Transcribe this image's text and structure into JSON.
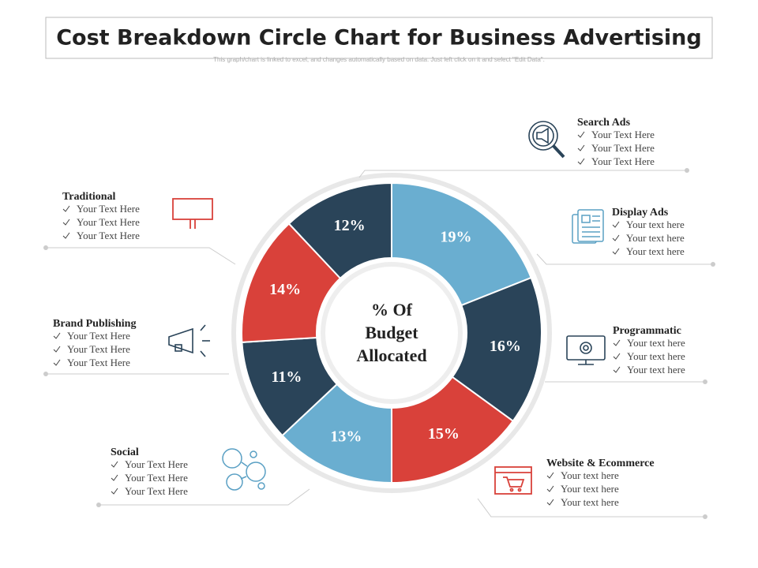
{
  "header": {
    "title": "Cost Breakdown Circle Chart for Business Advertising",
    "subtitle": "This graph/chart is linked to excel, and changes automatically  based on data. Just left click on it and select \"Edit Data\"."
  },
  "chart_data": {
    "type": "donut",
    "center_label": [
      "% Of",
      "Budget",
      "Allocated"
    ],
    "values": [
      19,
      16,
      15,
      13,
      11,
      14,
      12
    ],
    "value_labels": [
      "19%",
      "16%",
      "15%",
      "13%",
      "11%",
      "14%",
      "12%"
    ],
    "colors": [
      "#6aaed0",
      "#2a4459",
      "#d9413a",
      "#6aaed0",
      "#2a4459",
      "#d9413a",
      "#2a4459"
    ]
  },
  "callouts": [
    {
      "title": "Search Ads",
      "items": [
        "Your Text Here",
        "Your Text Here",
        "Your Text Here"
      ]
    },
    {
      "title": "Display Ads",
      "items": [
        "Your text here",
        "Your text here",
        "Your text here"
      ]
    },
    {
      "title": "Programmatic",
      "items": [
        "Your text here",
        "Your text here",
        "Your text here"
      ]
    },
    {
      "title": "Website & Ecommerce",
      "items": [
        "Your text here",
        "Your text here",
        "Your text here"
      ]
    },
    {
      "title": "Social",
      "items": [
        "Your Text Here",
        "Your Text Here",
        "Your Text Here"
      ]
    },
    {
      "title": "Brand Publishing",
      "items": [
        "Your Text Here",
        "Your Text Here",
        "Your Text Here"
      ]
    },
    {
      "title": "Traditional",
      "items": [
        "Your Text Here",
        "Your Text Here",
        "Your Text Here"
      ]
    }
  ]
}
